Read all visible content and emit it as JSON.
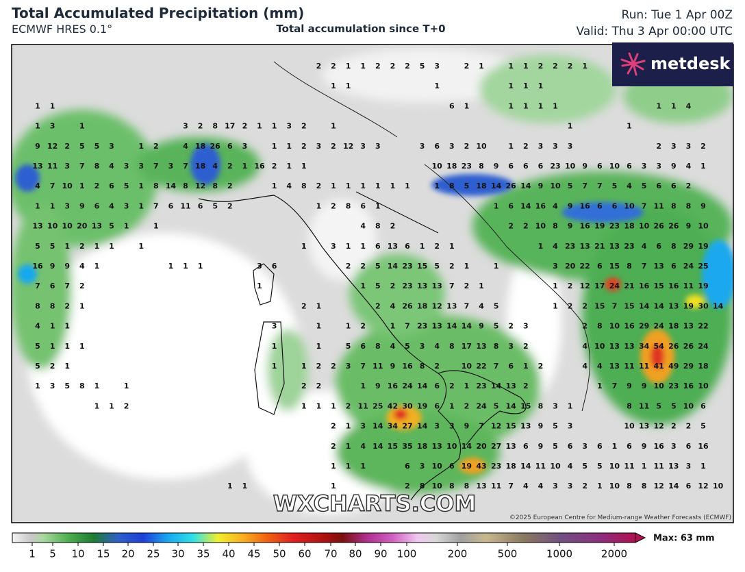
{
  "header": {
    "title": "Total Accumulated Precipitation (mm)",
    "model": "ECMWF HRES 0.1°",
    "subtitle": "Total accumulation since T+0",
    "run": "Run: Tue 1 Apr 00Z",
    "valid": "Valid: Thu 3 Apr 00:00 UTC"
  },
  "logo": "metdesk",
  "map": {
    "station_values": [
      [
        null,
        null,
        null,
        null,
        null,
        null,
        null,
        null,
        null,
        null,
        null,
        null,
        null,
        null,
        null,
        null,
        null,
        null,
        null,
        2,
        2,
        1,
        1,
        2,
        2,
        2,
        5,
        3,
        null,
        2,
        1,
        null,
        1,
        1,
        2,
        2,
        2,
        1
      ],
      [
        null,
        null,
        null,
        null,
        null,
        null,
        null,
        null,
        null,
        null,
        null,
        null,
        null,
        null,
        null,
        null,
        null,
        null,
        null,
        null,
        1,
        1,
        null,
        null,
        null,
        null,
        null,
        1,
        null,
        null,
        null,
        null,
        1,
        1,
        1
      ],
      [
        1,
        1,
        null,
        null,
        null,
        null,
        null,
        null,
        null,
        null,
        null,
        null,
        null,
        null,
        null,
        null,
        null,
        null,
        null,
        null,
        null,
        null,
        null,
        null,
        null,
        null,
        null,
        null,
        6,
        1,
        null,
        null,
        1,
        1,
        1,
        1,
        null,
        null,
        null,
        null,
        null,
        null,
        1,
        1,
        4
      ],
      [
        1,
        3,
        null,
        1,
        null,
        null,
        null,
        null,
        null,
        null,
        3,
        2,
        8,
        17,
        2,
        1,
        1,
        3,
        2,
        null,
        1,
        null,
        null,
        null,
        null,
        null,
        null,
        null,
        null,
        null,
        null,
        null,
        null,
        null,
        null,
        null,
        1,
        null,
        null,
        null,
        1
      ],
      [
        9,
        12,
        2,
        5,
        5,
        3,
        null,
        1,
        2,
        null,
        4,
        18,
        26,
        6,
        3,
        null,
        1,
        1,
        2,
        3,
        2,
        12,
        3,
        3,
        null,
        null,
        3,
        6,
        3,
        2,
        10,
        null,
        1,
        2,
        3,
        3,
        3,
        null,
        null,
        null,
        null,
        null,
        2,
        3,
        3,
        2
      ],
      [
        13,
        11,
        3,
        7,
        8,
        4,
        3,
        3,
        7,
        3,
        7,
        18,
        4,
        2,
        1,
        16,
        2,
        1,
        1,
        null,
        null,
        null,
        null,
        null,
        null,
        null,
        null,
        10,
        18,
        23,
        8,
        9,
        6,
        6,
        6,
        23,
        10,
        9,
        6,
        10,
        6,
        3,
        3,
        9,
        4,
        1
      ],
      [
        4,
        7,
        10,
        1,
        2,
        6,
        5,
        1,
        8,
        14,
        8,
        12,
        8,
        2,
        null,
        null,
        1,
        4,
        8,
        2,
        1,
        1,
        1,
        1,
        1,
        1,
        null,
        1,
        8,
        5,
        18,
        14,
        26,
        14,
        9,
        10,
        5,
        7,
        7,
        5,
        4,
        5,
        6,
        6,
        2
      ],
      [
        1,
        1,
        3,
        9,
        6,
        4,
        3,
        1,
        7,
        6,
        11,
        6,
        5,
        2,
        null,
        null,
        null,
        null,
        null,
        1,
        2,
        8,
        6,
        1,
        null,
        null,
        null,
        null,
        null,
        null,
        null,
        1,
        6,
        14,
        16,
        4,
        9,
        16,
        6,
        6,
        10,
        7,
        11,
        8,
        8,
        9
      ],
      [
        13,
        10,
        10,
        20,
        13,
        5,
        1,
        null,
        1,
        null,
        null,
        null,
        null,
        null,
        null,
        null,
        null,
        null,
        null,
        null,
        null,
        null,
        4,
        8,
        2,
        null,
        null,
        null,
        null,
        null,
        null,
        null,
        2,
        2,
        10,
        8,
        9,
        16,
        19,
        23,
        18,
        10,
        26,
        26,
        9,
        10
      ],
      [
        5,
        5,
        1,
        2,
        1,
        1,
        null,
        1,
        null,
        null,
        null,
        null,
        null,
        null,
        null,
        null,
        null,
        null,
        1,
        null,
        3,
        1,
        1,
        6,
        13,
        6,
        1,
        2,
        1,
        null,
        null,
        null,
        null,
        null,
        1,
        4,
        23,
        13,
        21,
        13,
        23,
        4,
        6,
        8,
        29,
        19
      ],
      [
        16,
        9,
        9,
        4,
        1,
        null,
        null,
        null,
        null,
        1,
        1,
        1,
        null,
        null,
        null,
        3,
        6,
        null,
        null,
        null,
        null,
        2,
        2,
        5,
        14,
        23,
        15,
        5,
        2,
        1,
        null,
        1,
        null,
        null,
        null,
        3,
        20,
        22,
        6,
        15,
        8,
        7,
        13,
        6,
        24,
        25
      ],
      [
        7,
        6,
        7,
        2,
        null,
        null,
        null,
        null,
        null,
        null,
        null,
        null,
        null,
        null,
        null,
        1,
        null,
        null,
        null,
        null,
        null,
        null,
        1,
        5,
        2,
        23,
        13,
        13,
        7,
        2,
        1,
        null,
        null,
        null,
        null,
        1,
        2,
        12,
        17,
        24,
        21,
        16,
        15,
        16,
        11,
        19
      ],
      [
        8,
        8,
        2,
        1,
        null,
        null,
        null,
        null,
        null,
        null,
        null,
        null,
        null,
        null,
        null,
        null,
        null,
        null,
        2,
        1,
        null,
        null,
        null,
        2,
        4,
        26,
        18,
        12,
        13,
        7,
        4,
        5,
        null,
        null,
        null,
        1,
        2,
        2,
        15,
        7,
        15,
        14,
        14,
        13,
        19,
        30,
        14
      ],
      [
        4,
        1,
        1,
        null,
        null,
        null,
        null,
        null,
        null,
        null,
        null,
        null,
        null,
        null,
        null,
        null,
        3,
        null,
        null,
        1,
        null,
        1,
        2,
        null,
        1,
        7,
        23,
        13,
        14,
        14,
        9,
        5,
        2,
        3,
        null,
        null,
        null,
        2,
        8,
        10,
        16,
        29,
        24,
        18,
        13,
        22
      ],
      [
        5,
        1,
        1,
        1,
        null,
        null,
        null,
        null,
        null,
        null,
        null,
        null,
        null,
        null,
        null,
        null,
        1,
        null,
        null,
        1,
        null,
        5,
        6,
        8,
        4,
        5,
        3,
        4,
        8,
        17,
        13,
        8,
        3,
        2,
        null,
        null,
        null,
        4,
        10,
        13,
        13,
        34,
        54,
        26,
        26,
        24
      ],
      [
        5,
        2,
        1,
        null,
        null,
        null,
        null,
        null,
        null,
        null,
        null,
        null,
        null,
        null,
        null,
        null,
        1,
        null,
        1,
        2,
        2,
        3,
        7,
        11,
        9,
        16,
        8,
        2,
        null,
        10,
        22,
        7,
        6,
        1,
        2,
        null,
        null,
        4,
        4,
        13,
        11,
        11,
        41,
        49,
        29,
        18
      ],
      [
        1,
        3,
        5,
        8,
        1,
        null,
        1,
        null,
        null,
        null,
        null,
        null,
        null,
        null,
        null,
        null,
        null,
        null,
        2,
        2,
        null,
        null,
        1,
        9,
        16,
        24,
        14,
        6,
        2,
        1,
        23,
        14,
        13,
        2,
        null,
        null,
        null,
        null,
        1,
        7,
        9,
        9,
        10,
        23,
        16,
        10
      ],
      [
        null,
        null,
        null,
        null,
        1,
        1,
        2,
        null,
        null,
        null,
        null,
        null,
        null,
        null,
        null,
        null,
        null,
        null,
        1,
        1,
        1,
        2,
        11,
        25,
        42,
        30,
        19,
        6,
        1,
        2,
        24,
        5,
        14,
        15,
        8,
        3,
        1,
        null,
        null,
        null,
        8,
        11,
        5,
        5,
        10,
        6
      ],
      [
        null,
        null,
        null,
        null,
        null,
        null,
        null,
        null,
        null,
        null,
        null,
        null,
        null,
        null,
        null,
        null,
        null,
        null,
        null,
        null,
        2,
        1,
        3,
        14,
        34,
        27,
        14,
        3,
        3,
        9,
        7,
        12,
        15,
        13,
        9,
        5,
        3,
        null,
        null,
        null,
        10,
        13,
        12,
        2,
        2,
        5
      ],
      [
        null,
        null,
        null,
        null,
        null,
        null,
        null,
        null,
        null,
        null,
        null,
        null,
        null,
        null,
        null,
        null,
        null,
        null,
        null,
        null,
        2,
        1,
        4,
        14,
        15,
        35,
        18,
        13,
        10,
        14,
        20,
        27,
        13,
        6,
        9,
        5,
        6,
        3,
        6,
        1,
        6,
        9,
        16,
        3,
        6,
        16
      ],
      [
        null,
        null,
        null,
        null,
        null,
        null,
        null,
        null,
        null,
        null,
        null,
        null,
        null,
        null,
        null,
        null,
        null,
        null,
        null,
        null,
        1,
        1,
        1,
        null,
        null,
        6,
        3,
        10,
        6,
        19,
        43,
        23,
        18,
        14,
        11,
        10,
        4,
        5,
        5,
        10,
        11,
        1,
        11,
        13,
        3,
        1
      ],
      [
        null,
        null,
        null,
        null,
        null,
        null,
        null,
        null,
        null,
        null,
        null,
        null,
        null,
        1,
        1,
        null,
        null,
        null,
        null,
        null,
        1,
        null,
        null,
        null,
        null,
        2,
        8,
        10,
        8,
        8,
        13,
        11,
        7,
        4,
        4,
        3,
        3,
        2,
        1,
        10,
        8,
        8,
        12,
        14,
        6,
        12,
        10
      ]
    ],
    "watermark": "WXCHARTS.COM",
    "copyright": "©2025 European Centre for Medium-range Weather Forecasts (ECMWF)"
  },
  "colorbar": {
    "ticks": [
      1,
      5,
      10,
      15,
      20,
      25,
      30,
      35,
      40,
      45,
      50,
      60,
      70,
      80,
      90,
      100,
      200,
      500,
      1000,
      2000
    ],
    "max_label": "Max: 63 mm"
  }
}
